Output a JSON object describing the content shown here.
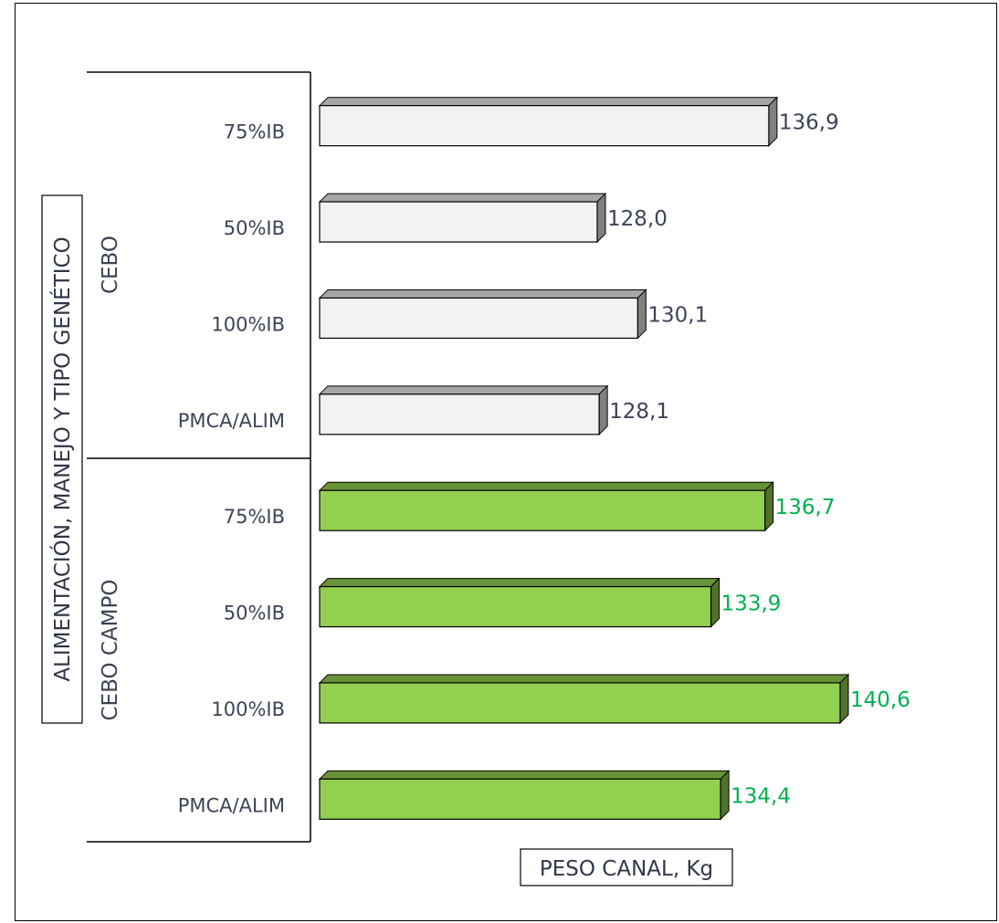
{
  "chart_data": {
    "type": "bar",
    "orientation": "horizontal",
    "ylabel": "ALIMENTACIÓN, MANEJO Y TIPO GENÉTICO",
    "xlabel": "PESO CANAL, Kg",
    "xlim": [
      113.6,
      140.6
    ],
    "groups": [
      {
        "name": "CEBO",
        "color": "#f2f2f2",
        "label_color": "#3c4556",
        "categories": [
          "75%IB",
          "50%IB",
          "100%IB",
          "PMCA/ALIM"
        ],
        "values": [
          136.9,
          128.0,
          130.1,
          128.1
        ],
        "labels": [
          "136,9",
          "128,0",
          "130,1",
          "128,1"
        ]
      },
      {
        "name": "CEBO CAMPO",
        "color": "#92d050",
        "label_color": "#00b050",
        "categories": [
          "75%IB",
          "50%IB",
          "100%IB",
          "PMCA/ALIM"
        ],
        "values": [
          136.7,
          133.9,
          140.6,
          134.4
        ],
        "labels": [
          "136,7",
          "133,9",
          "140,6",
          "134,4"
        ]
      }
    ]
  }
}
